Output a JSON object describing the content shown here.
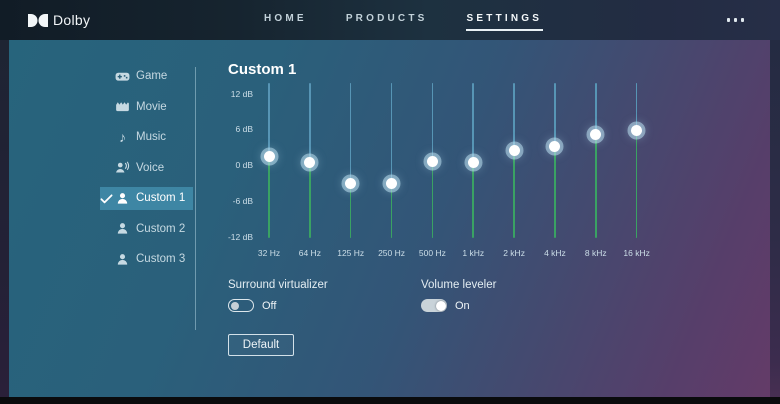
{
  "header": {
    "brand": "Dolby",
    "nav": [
      {
        "label": "HOME",
        "active": false
      },
      {
        "label": "PRODUCTS",
        "active": false
      },
      {
        "label": "SETTINGS",
        "active": true
      }
    ]
  },
  "sidebar": {
    "items": [
      {
        "label": "Game",
        "icon": "gamepad-icon",
        "selected": false
      },
      {
        "label": "Movie",
        "icon": "movie-icon",
        "selected": false
      },
      {
        "label": "Music",
        "icon": "music-note-icon",
        "selected": false
      },
      {
        "label": "Voice",
        "icon": "voice-icon",
        "selected": false
      },
      {
        "label": "Custom 1",
        "icon": "person-icon",
        "selected": true
      },
      {
        "label": "Custom 2",
        "icon": "person-icon",
        "selected": false
      },
      {
        "label": "Custom 3",
        "icon": "person-icon",
        "selected": false
      }
    ]
  },
  "main": {
    "title": "Custom 1",
    "equalizer": {
      "db_ticks": [
        "12 dB",
        "6 dB",
        "0 dB",
        "-6 dB",
        "-12 dB"
      ],
      "db_range": [
        -12,
        12
      ],
      "bands": [
        {
          "freq": "32 Hz",
          "gain_db": 1.5
        },
        {
          "freq": "64 Hz",
          "gain_db": 0.5
        },
        {
          "freq": "125 Hz",
          "gain_db": -3.1
        },
        {
          "freq": "250 Hz",
          "gain_db": -3.1
        },
        {
          "freq": "500 Hz",
          "gain_db": 0.75
        },
        {
          "freq": "1 kHz",
          "gain_db": 0.5
        },
        {
          "freq": "2 kHz",
          "gain_db": 2.5
        },
        {
          "freq": "4 kHz",
          "gain_db": 3.25
        },
        {
          "freq": "8 kHz",
          "gain_db": 5.25
        },
        {
          "freq": "16 kHz",
          "gain_db": 5.8
        }
      ],
      "colors": {
        "track_above": "#5795b5",
        "track_below": "#3aa263",
        "knob": "#ffffff"
      }
    },
    "controls": {
      "surround": {
        "label": "Surround virtualizer",
        "state_label": "Off",
        "on": false
      },
      "leveler": {
        "label": "Volume leveler",
        "state_label": "On",
        "on": true
      }
    },
    "default_button": "Default"
  },
  "colors": {
    "selected_row": "#3e86a4",
    "accent_underline": "#e9f1f5",
    "background_teal": "#27647c",
    "background_purple": "#653b68"
  }
}
